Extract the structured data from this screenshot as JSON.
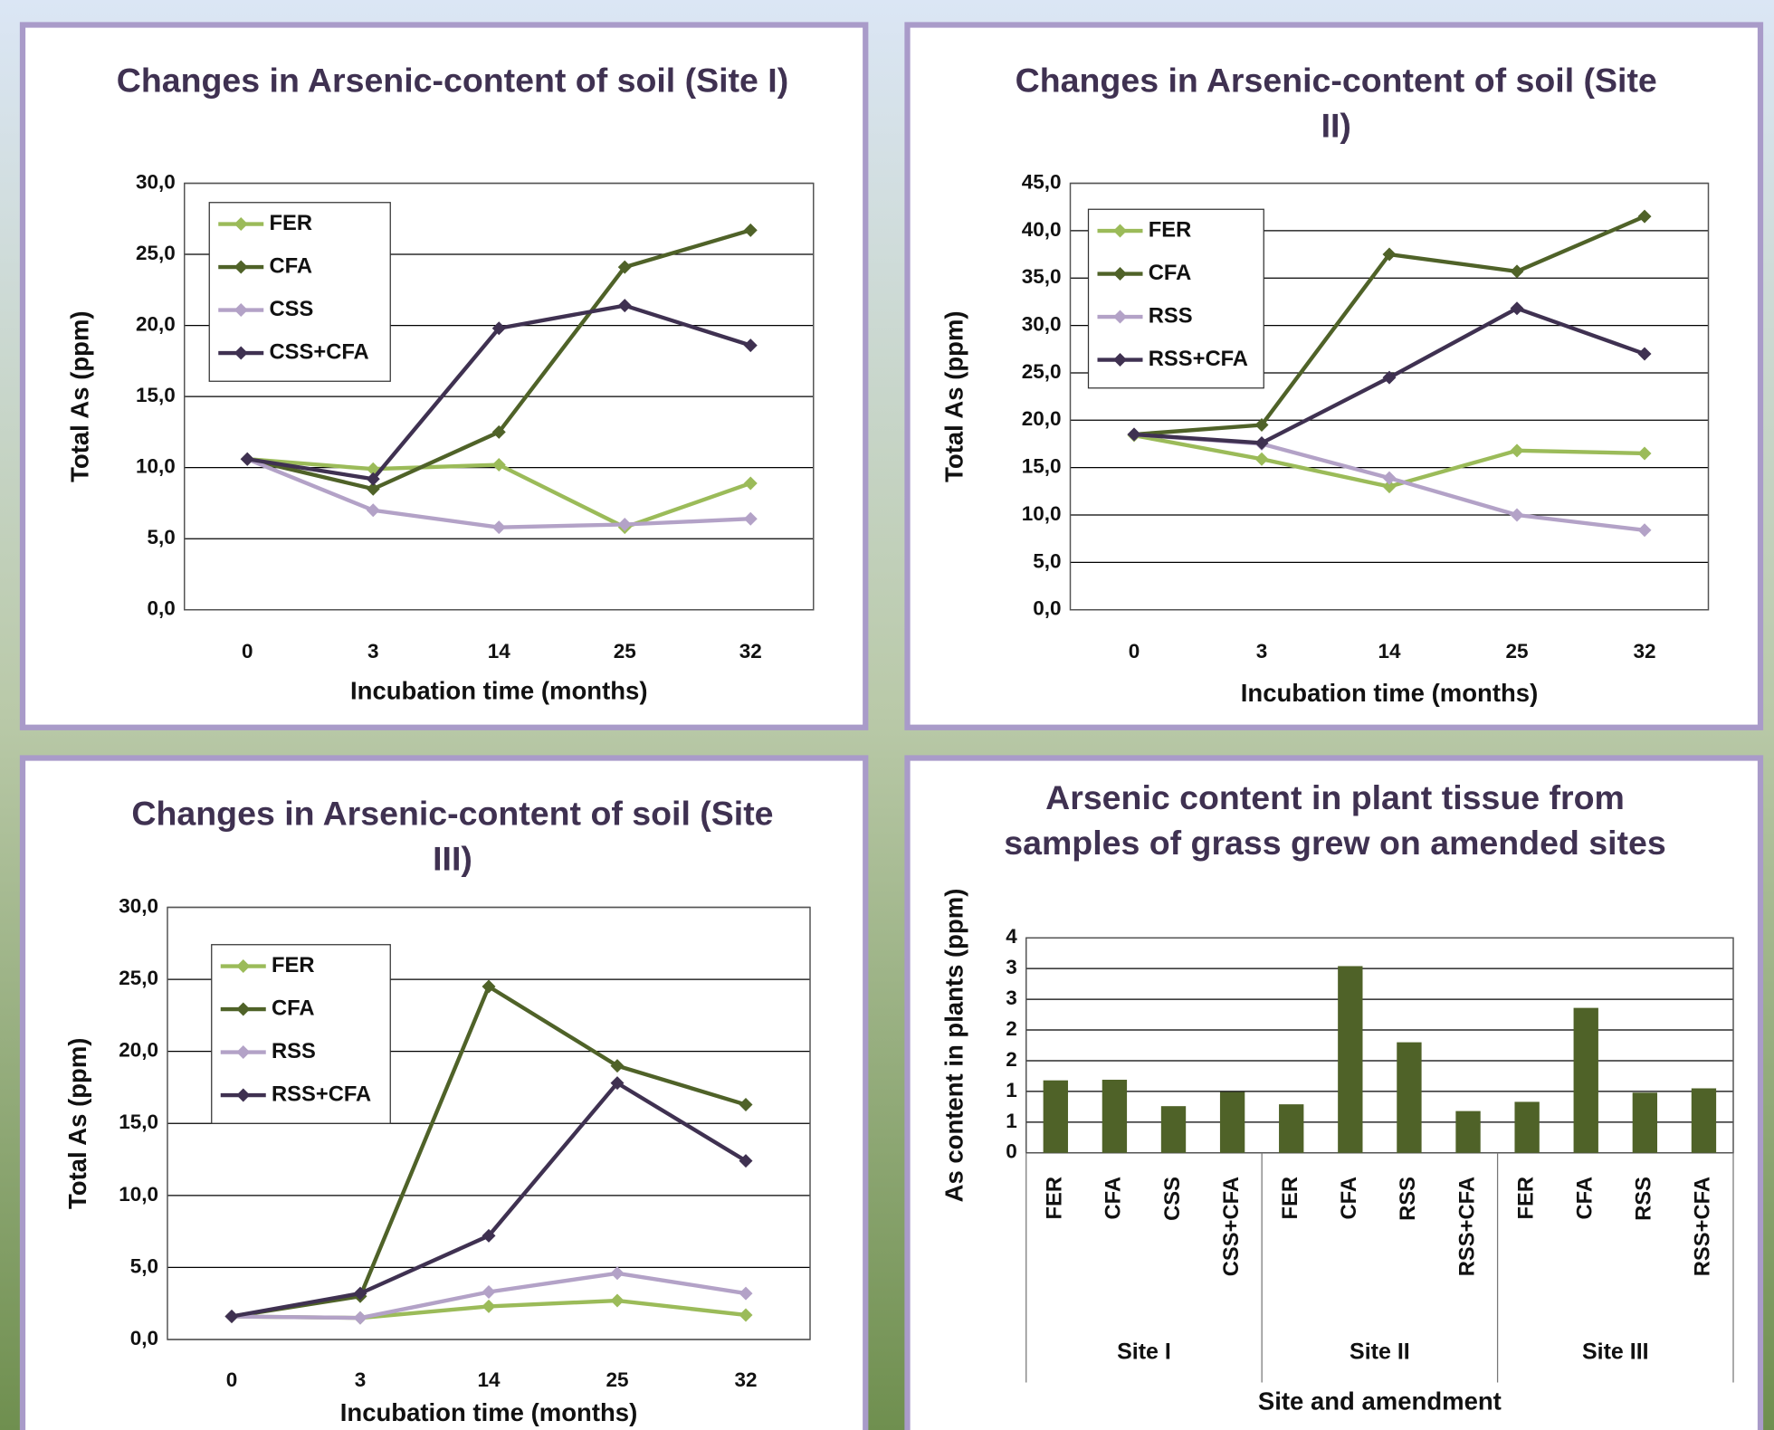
{
  "chart_data": [
    {
      "type": "line",
      "title": "Changes in Arsenic-content of soil (Site I)",
      "x_label": "Incubation time (months)",
      "y_label": "Total As (ppm)",
      "categories": [
        "0",
        "3",
        "14",
        "25",
        "32"
      ],
      "series": [
        {
          "name": "FER",
          "color": "#9bbb59",
          "values": [
            10.6,
            9.9,
            10.2,
            5.8,
            8.9
          ]
        },
        {
          "name": "CFA",
          "color": "#4f6228",
          "values": [
            10.6,
            8.5,
            12.5,
            24.1,
            26.7
          ]
        },
        {
          "name": "CSS",
          "color": "#b3a2c7",
          "values": [
            10.6,
            7.0,
            5.8,
            6.0,
            6.4
          ]
        },
        {
          "name": "CSS+CFA",
          "color": "#3f3151",
          "values": [
            10.6,
            9.2,
            19.8,
            21.4,
            18.6
          ]
        }
      ],
      "ylim": [
        0,
        30
      ],
      "yticks": [
        {
          "value": 0,
          "label": "0,0"
        },
        {
          "value": 5,
          "label": "5,0"
        },
        {
          "value": 10,
          "label": "10,0"
        },
        {
          "value": 15,
          "label": "15,0"
        },
        {
          "value": 20,
          "label": "20,0"
        },
        {
          "value": 25,
          "label": "25,0"
        },
        {
          "value": 30,
          "label": "30,0"
        }
      ],
      "grid": true,
      "legend": "upper left"
    },
    {
      "type": "line",
      "title": "Changes in Arsenic-content of soil (Site II)",
      "x_label": "Incubation time (months)",
      "y_label": "Total As (ppm)",
      "categories": [
        "0",
        "3",
        "14",
        "25",
        "32"
      ],
      "series": [
        {
          "name": "FER",
          "color": "#9bbb59",
          "values": [
            18.4,
            15.9,
            13.0,
            16.8,
            16.5
          ]
        },
        {
          "name": "CFA",
          "color": "#4f6228",
          "values": [
            18.5,
            19.5,
            37.5,
            35.7,
            41.5
          ]
        },
        {
          "name": "RSS",
          "color": "#b3a2c7",
          "values": [
            18.5,
            17.5,
            13.9,
            10.0,
            8.4
          ]
        },
        {
          "name": "RSS+CFA",
          "color": "#3f3151",
          "values": [
            18.5,
            17.6,
            24.5,
            31.8,
            27.0
          ]
        }
      ],
      "ylim": [
        0,
        45
      ],
      "yticks": [
        {
          "value": 0,
          "label": "0,0"
        },
        {
          "value": 5,
          "label": "5,0"
        },
        {
          "value": 10,
          "label": "10,0"
        },
        {
          "value": 15,
          "label": "15,0"
        },
        {
          "value": 20,
          "label": "20,0"
        },
        {
          "value": 25,
          "label": "25,0"
        },
        {
          "value": 30,
          "label": "30,0"
        },
        {
          "value": 35,
          "label": "35,0"
        },
        {
          "value": 40,
          "label": "40,0"
        },
        {
          "value": 45,
          "label": "45,0"
        }
      ],
      "grid": true,
      "legend": "upper left"
    },
    {
      "type": "line",
      "title": "Changes in Arsenic-content of soil (Site III)",
      "x_label": "Incubation time (months)",
      "y_label": "Total As (ppm)",
      "categories": [
        "0",
        "3",
        "14",
        "25",
        "32"
      ],
      "series": [
        {
          "name": "FER",
          "color": "#9bbb59",
          "values": [
            1.6,
            1.5,
            2.3,
            2.7,
            1.7
          ]
        },
        {
          "name": "CFA",
          "color": "#4f6228",
          "values": [
            1.6,
            3.0,
            24.5,
            19.0,
            16.3
          ]
        },
        {
          "name": "RSS",
          "color": "#b3a2c7",
          "values": [
            1.6,
            1.5,
            3.3,
            4.6,
            3.2
          ]
        },
        {
          "name": "RSS+CFA",
          "color": "#3f3151",
          "values": [
            1.6,
            3.2,
            7.2,
            17.8,
            12.4
          ]
        }
      ],
      "ylim": [
        0,
        30
      ],
      "yticks": [
        {
          "value": 0,
          "label": "0,0"
        },
        {
          "value": 5,
          "label": "5,0"
        },
        {
          "value": 10,
          "label": "10,0"
        },
        {
          "value": 15,
          "label": "15,0"
        },
        {
          "value": 20,
          "label": "20,0"
        },
        {
          "value": 25,
          "label": "25,0"
        },
        {
          "value": 30,
          "label": "30,0"
        }
      ],
      "grid": true,
      "legend": "upper left"
    },
    {
      "type": "bar",
      "title": "Arsenic content in plant tissue from samples of grass grew on  amended sites",
      "x_label": "Site and amendment",
      "y_label": "As content in plants (ppm)",
      "categories": [
        "FER",
        "CFA",
        "CSS",
        "CSS+CFA",
        "FER",
        "CFA",
        "RSS",
        "RSS+CFA",
        "FER",
        "CFA",
        "RSS",
        "RSS+CFA"
      ],
      "groups": [
        "Site I",
        "Site II",
        "Site III"
      ],
      "values": [
        1.18,
        1.19,
        0.76,
        0.99,
        0.79,
        3.04,
        1.8,
        0.68,
        0.83,
        2.36,
        0.98,
        1.05
      ],
      "color": "#4f6228",
      "ylim": [
        0,
        3.5
      ],
      "yticks": [
        0,
        {
          "value": 0.5,
          "label": "1"
        },
        1,
        {
          "value": 1.5,
          "label": "2"
        },
        2,
        {
          "value": 2.5,
          "label": "3"
        },
        3,
        {
          "value": 3.5,
          "label": "4"
        }
      ],
      "grid": true
    }
  ]
}
